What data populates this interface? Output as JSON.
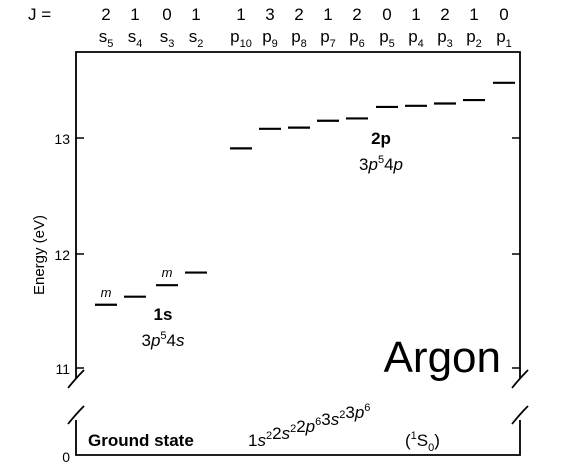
{
  "header": {
    "j_label": "J =",
    "j_values": [
      "2",
      "1",
      "0",
      "1",
      "1",
      "3",
      "2",
      "1",
      "2",
      "0",
      "1",
      "2",
      "1",
      "0"
    ],
    "state_labels": [
      {
        "base": "s",
        "sub": "5"
      },
      {
        "base": "s",
        "sub": "4"
      },
      {
        "base": "s",
        "sub": "3"
      },
      {
        "base": "s",
        "sub": "2"
      },
      {
        "base": "p",
        "sub": "10"
      },
      {
        "base": "p",
        "sub": "9"
      },
      {
        "base": "p",
        "sub": "8"
      },
      {
        "base": "p",
        "sub": "7"
      },
      {
        "base": "p",
        "sub": "6"
      },
      {
        "base": "p",
        "sub": "5"
      },
      {
        "base": "p",
        "sub": "4"
      },
      {
        "base": "p",
        "sub": "3"
      },
      {
        "base": "p",
        "sub": "2"
      },
      {
        "base": "p",
        "sub": "1"
      }
    ]
  },
  "axis": {
    "ylabel": "Energy (eV)",
    "ticks": [
      "13",
      "12",
      "11",
      "0"
    ]
  },
  "levels_1s": [
    {
      "state": "s5",
      "energy_ev": 11.55,
      "metastable": true
    },
    {
      "state": "s4",
      "energy_ev": 11.62,
      "metastable": false
    },
    {
      "state": "s3",
      "energy_ev": 11.72,
      "metastable": true
    },
    {
      "state": "s2",
      "energy_ev": 11.83,
      "metastable": false
    }
  ],
  "levels_2p": [
    {
      "state": "p10",
      "energy_ev": 12.91
    },
    {
      "state": "p9",
      "energy_ev": 13.08
    },
    {
      "state": "p8",
      "energy_ev": 13.09
    },
    {
      "state": "p7",
      "energy_ev": 13.15
    },
    {
      "state": "p6",
      "energy_ev": 13.17
    },
    {
      "state": "p5",
      "energy_ev": 13.27
    },
    {
      "state": "p4",
      "energy_ev": 13.28
    },
    {
      "state": "p3",
      "energy_ev": 13.3
    },
    {
      "state": "p2",
      "energy_ev": 13.33
    },
    {
      "state": "p1",
      "energy_ev": 13.48
    }
  ],
  "metastable_mark": "m",
  "group_1s": {
    "name": "1s",
    "config": {
      "n1": "3",
      "l1": "p",
      "e1": "5",
      "n2": "4",
      "l2": "s"
    }
  },
  "group_2p": {
    "name": "2p",
    "config": {
      "n1": "3",
      "l1": "p",
      "e1": "5",
      "n2": "4",
      "l2": "p"
    }
  },
  "element": "Argon",
  "ground_state": {
    "label": "Ground state",
    "config": [
      {
        "n": "1",
        "l": "s",
        "e": "2"
      },
      {
        "n": "2",
        "l": "s",
        "e": "2"
      },
      {
        "n": "2",
        "l": "p",
        "e": "6"
      },
      {
        "n": "3",
        "l": "s",
        "e": "2"
      },
      {
        "n": "3",
        "l": "p",
        "e": "6"
      }
    ],
    "term": {
      "open": "(",
      "mult": "1",
      "L": "S",
      "J": "0",
      "close": ")"
    }
  }
}
